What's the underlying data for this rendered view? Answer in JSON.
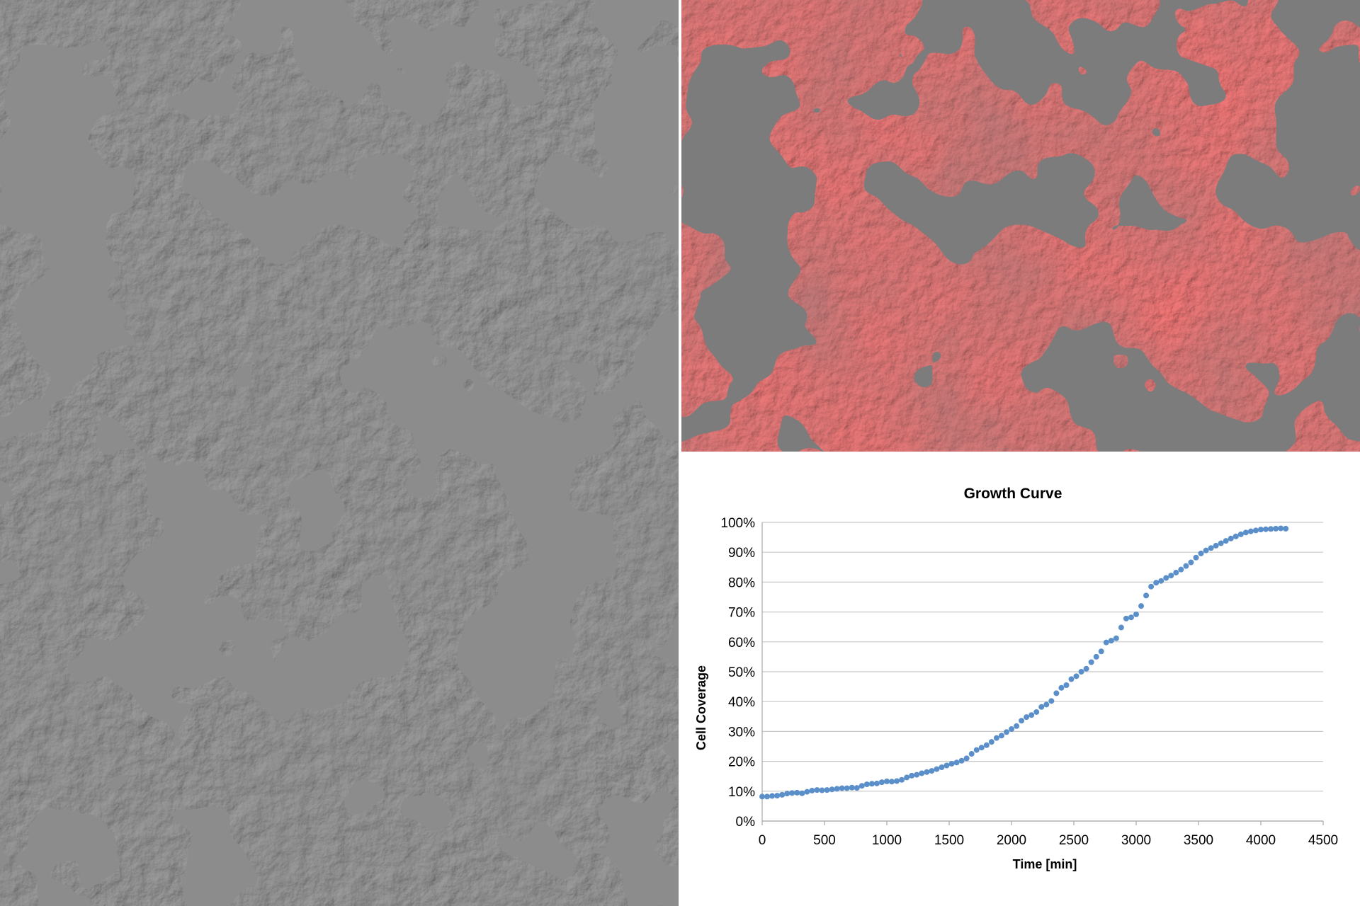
{
  "micrograph": {
    "description_icon": "cell-micrograph-image"
  },
  "segmentation": {
    "overlay_color": "#ff6b6b",
    "background_color": "#7c7c7c"
  },
  "chart_data": {
    "type": "scatter",
    "title": "Growth Curve",
    "xlabel": "Time [min]",
    "ylabel": "Cell Coverage",
    "xlim": [
      0,
      4500
    ],
    "ylim": [
      0,
      100
    ],
    "x_ticks": [
      0,
      500,
      1000,
      1500,
      2000,
      2500,
      3000,
      3500,
      4000,
      4500
    ],
    "y_ticks": [
      "0%",
      "10%",
      "20%",
      "30%",
      "40%",
      "50%",
      "60%",
      "70%",
      "80%",
      "90%",
      "100%"
    ],
    "grid": true,
    "marker_color": "#5b8fc9",
    "series": [
      {
        "x": [
          0,
          40,
          80,
          120,
          160,
          200,
          240,
          280,
          320,
          360,
          400,
          440,
          480,
          520,
          560,
          600,
          640,
          680,
          720,
          760,
          800,
          840,
          880,
          920,
          960,
          1000,
          1040,
          1080,
          1120,
          1160,
          1200,
          1240,
          1280,
          1320,
          1360,
          1400,
          1440,
          1480,
          1520,
          1560,
          1600,
          1640,
          1680,
          1720,
          1760,
          1800,
          1840,
          1880,
          1920,
          1960,
          2000,
          2040,
          2080,
          2120,
          2160,
          2200,
          2240,
          2280,
          2320,
          2360,
          2400,
          2440,
          2480,
          2520,
          2560,
          2600,
          2640,
          2680,
          2720,
          2760,
          2800,
          2840,
          2880,
          2920,
          2960,
          3000,
          3040,
          3080,
          3120,
          3160,
          3200,
          3240,
          3280,
          3320,
          3360,
          3400,
          3440,
          3480,
          3520,
          3560,
          3600,
          3640,
          3680,
          3720,
          3760,
          3800,
          3840,
          3880,
          3920,
          3960,
          4000,
          4040,
          4080,
          4120,
          4160,
          4200
        ],
        "y": [
          8.2,
          8.2,
          8.4,
          8.5,
          8.8,
          9.2,
          9.4,
          9.5,
          9.3,
          9.8,
          10.2,
          10.4,
          10.3,
          10.4,
          10.6,
          10.8,
          11.0,
          11.0,
          11.2,
          11.1,
          11.8,
          12.3,
          12.5,
          12.6,
          13.0,
          13.3,
          13.2,
          13.4,
          13.8,
          14.6,
          15.2,
          15.5,
          16.0,
          16.4,
          16.8,
          17.4,
          18.0,
          18.6,
          19.2,
          19.6,
          20.2,
          21.0,
          22.5,
          23.8,
          24.6,
          25.4,
          26.5,
          27.8,
          28.6,
          29.8,
          30.8,
          31.8,
          33.6,
          34.8,
          35.5,
          36.5,
          38.2,
          39.0,
          40.2,
          42.8,
          44.6,
          45.5,
          47.5,
          48.5,
          50.0,
          51.0,
          53.2,
          55.0,
          56.8,
          59.8,
          60.4,
          61.2,
          64.8,
          67.8,
          68.2,
          69.2,
          72.0,
          75.5,
          78.5,
          79.8,
          80.4,
          81.4,
          82.2,
          83.2,
          84.2,
          85.4,
          86.6,
          88.2,
          89.6,
          90.6,
          91.4,
          92.2,
          93.0,
          93.8,
          94.6,
          95.3,
          96.0,
          96.6,
          97.0,
          97.3,
          97.6,
          97.7,
          97.8,
          97.9,
          98.0,
          97.9
        ]
      }
    ]
  }
}
